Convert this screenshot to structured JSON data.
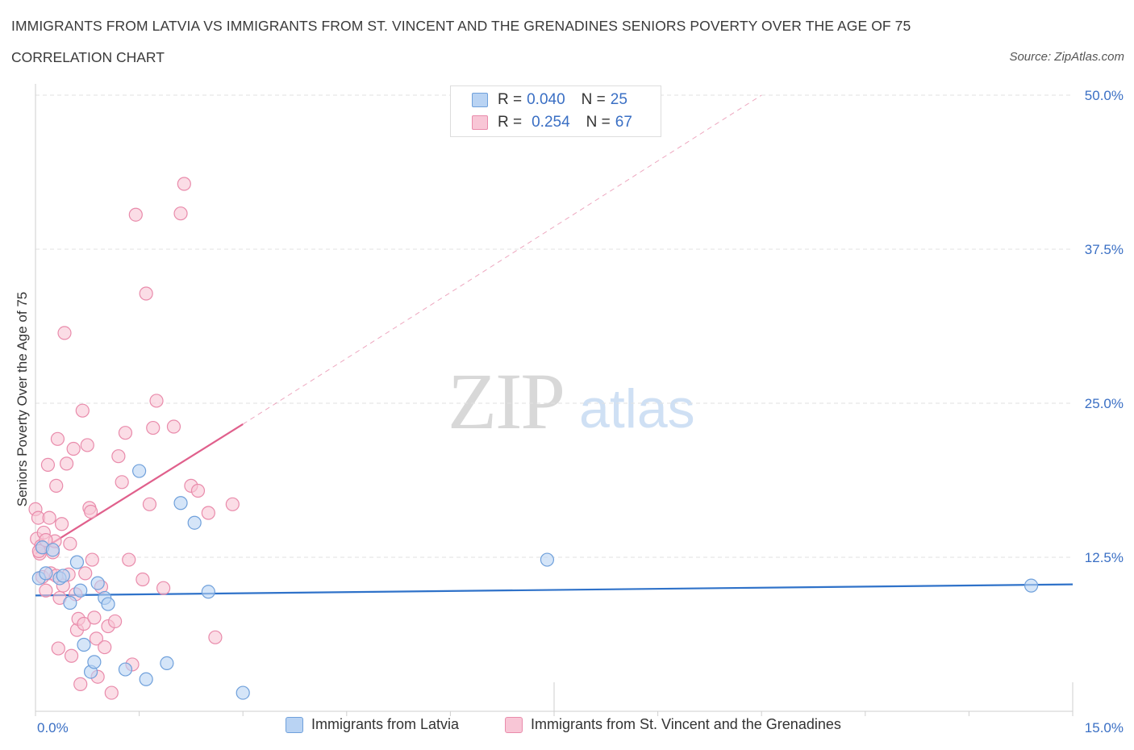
{
  "title": "IMMIGRANTS FROM LATVIA VS IMMIGRANTS FROM ST. VINCENT AND THE GRENADINES SENIORS POVERTY OVER THE AGE OF 75",
  "subtitle": "CORRELATION CHART",
  "source": "Source: ZipAtlas.com",
  "watermark": {
    "zip": "ZIP",
    "atlas": "atlas"
  },
  "legend_top": [
    {
      "r_label": "R =",
      "r_value": "0.040",
      "n_label": "N =",
      "n_value": "25"
    },
    {
      "r_label": "R =",
      "r_value": "0.254",
      "n_label": "N =",
      "n_value": "67"
    }
  ],
  "colors": {
    "latvia_fill": "#b9d3f3",
    "latvia_stroke": "#6fa0db",
    "latvia_line": "#2f72c9",
    "svg_fill": "#f8c6d6",
    "svg_stroke": "#e98bab",
    "svg_line": "#e0608c",
    "axis_text": "#3a6fc4",
    "grid": "#e2e2e2"
  },
  "chart_data": {
    "type": "scatter",
    "title": "IMMIGRANTS FROM LATVIA VS IMMIGRANTS FROM ST. VINCENT AND THE GRENADINES SENIORS POVERTY OVER THE AGE OF 75",
    "xlabel": "",
    "ylabel": "Seniors Poverty Over the Age of 75",
    "xlim": [
      0,
      15
    ],
    "ylim": [
      0,
      50
    ],
    "x_tick_labels": [
      "0.0%",
      "15.0%"
    ],
    "y_ticks": [
      12.5,
      25,
      37.5,
      50
    ],
    "y_tick_labels": [
      "12.5%",
      "25.0%",
      "37.5%",
      "50.0%"
    ],
    "legend_position": "bottom",
    "series": [
      {
        "name": "Immigrants from Latvia",
        "R": 0.04,
        "N": 25,
        "trend": {
          "x": [
            0,
            15
          ],
          "y": [
            9.4,
            10.3
          ],
          "dashed_extension": false
        },
        "points": [
          [
            0.05,
            10.8
          ],
          [
            0.1,
            13.3
          ],
          [
            0.15,
            11.2
          ],
          [
            0.25,
            13.1
          ],
          [
            0.35,
            10.8
          ],
          [
            0.4,
            11.0
          ],
          [
            0.5,
            8.8
          ],
          [
            0.6,
            12.1
          ],
          [
            0.65,
            9.8
          ],
          [
            0.7,
            5.4
          ],
          [
            0.8,
            3.2
          ],
          [
            0.85,
            4.0
          ],
          [
            0.9,
            10.4
          ],
          [
            1.0,
            9.2
          ],
          [
            1.05,
            8.7
          ],
          [
            1.3,
            3.4
          ],
          [
            1.5,
            19.5
          ],
          [
            1.6,
            2.6
          ],
          [
            1.9,
            3.9
          ],
          [
            2.1,
            16.9
          ],
          [
            2.3,
            15.3
          ],
          [
            2.5,
            9.7
          ],
          [
            3.0,
            1.5
          ],
          [
            7.4,
            12.3
          ],
          [
            14.4,
            10.2
          ]
        ]
      },
      {
        "name": "Immigrants from St. Vincent and the Grenadines",
        "R": 0.254,
        "N": 67,
        "trend": {
          "x": [
            0,
            3.0
          ],
          "y": [
            12.8,
            23.3
          ],
          "extension_x": [
            3.0,
            10.5
          ],
          "extension_y": [
            23.3,
            50.0
          ],
          "dashed_extension": true
        },
        "points": [
          [
            0.0,
            16.4
          ],
          [
            0.02,
            14.0
          ],
          [
            0.04,
            15.7
          ],
          [
            0.06,
            12.8
          ],
          [
            0.08,
            13.4
          ],
          [
            0.1,
            10.9
          ],
          [
            0.12,
            14.5
          ],
          [
            0.15,
            9.8
          ],
          [
            0.18,
            20.0
          ],
          [
            0.2,
            15.7
          ],
          [
            0.22,
            11.2
          ],
          [
            0.25,
            12.9
          ],
          [
            0.28,
            13.8
          ],
          [
            0.3,
            18.3
          ],
          [
            0.32,
            22.1
          ],
          [
            0.33,
            5.1
          ],
          [
            0.35,
            9.2
          ],
          [
            0.38,
            15.2
          ],
          [
            0.4,
            10.2
          ],
          [
            0.42,
            30.7
          ],
          [
            0.45,
            20.1
          ],
          [
            0.48,
            11.1
          ],
          [
            0.5,
            13.6
          ],
          [
            0.52,
            4.5
          ],
          [
            0.55,
            21.3
          ],
          [
            0.58,
            9.5
          ],
          [
            0.6,
            6.6
          ],
          [
            0.62,
            7.5
          ],
          [
            0.65,
            2.2
          ],
          [
            0.68,
            24.4
          ],
          [
            0.7,
            7.1
          ],
          [
            0.72,
            11.2
          ],
          [
            0.75,
            21.6
          ],
          [
            0.78,
            16.5
          ],
          [
            0.8,
            16.2
          ],
          [
            0.82,
            12.3
          ],
          [
            0.85,
            7.6
          ],
          [
            0.88,
            5.9
          ],
          [
            0.9,
            2.8
          ],
          [
            0.95,
            10.1
          ],
          [
            1.0,
            5.2
          ],
          [
            1.05,
            6.9
          ],
          [
            1.1,
            1.5
          ],
          [
            1.15,
            7.3
          ],
          [
            1.2,
            20.7
          ],
          [
            1.25,
            18.6
          ],
          [
            1.3,
            22.6
          ],
          [
            1.35,
            12.3
          ],
          [
            1.4,
            3.8
          ],
          [
            1.45,
            40.3
          ],
          [
            1.55,
            10.7
          ],
          [
            1.6,
            33.9
          ],
          [
            1.65,
            16.8
          ],
          [
            1.7,
            23.0
          ],
          [
            1.75,
            25.2
          ],
          [
            1.85,
            10.0
          ],
          [
            2.0,
            23.1
          ],
          [
            2.1,
            40.4
          ],
          [
            2.15,
            42.8
          ],
          [
            2.25,
            18.3
          ],
          [
            2.35,
            17.9
          ],
          [
            2.5,
            16.1
          ],
          [
            2.6,
            6.0
          ],
          [
            2.85,
            16.8
          ],
          [
            0.05,
            13.0
          ],
          [
            0.15,
            13.9
          ],
          [
            0.3,
            11.0
          ]
        ]
      }
    ]
  },
  "legend_bottom": [
    {
      "label": "Immigrants from Latvia"
    },
    {
      "label": "Immigrants from St. Vincent and the Grenadines"
    }
  ]
}
